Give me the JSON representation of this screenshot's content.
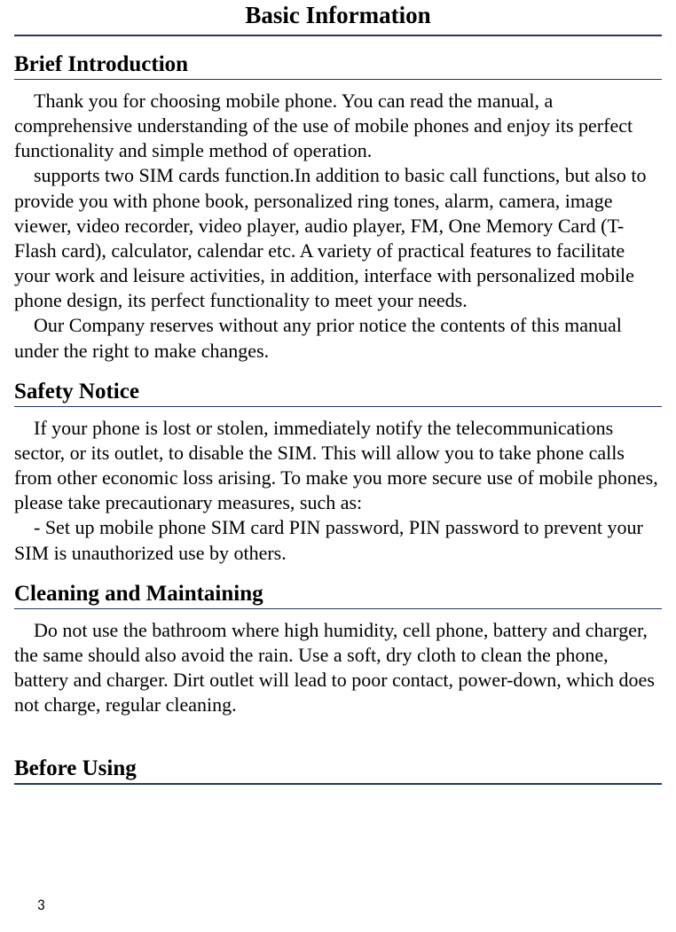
{
  "colors": {
    "rule": "#1f3864",
    "text": "#000000",
    "background": "#ffffff"
  },
  "typography": {
    "title_fontsize": 27,
    "heading_fontsize": 25,
    "body_fontsize": 22,
    "pagenum_fontsize": 17,
    "font_family": "Times New Roman"
  },
  "page_number": "3",
  "title": "Basic Information",
  "sections": [
    {
      "heading": "Brief Introduction",
      "paragraphs": [
        "Thank you for choosing mobile phone. You can read the manual, a comprehensive understanding of the use of mobile phones and enjoy its perfect functionality and simple method of operation.",
        "supports two SIM cards function.In addition to basic call functions, but also to provide you with phone book, personalized ring tones, alarm, camera, image viewer, video recorder, video player, audio player, FM, One Memory Card (T-Flash card), calculator, calendar etc. A variety of practical features to facilitate your work and leisure activities, in addition, interface with personalized mobile phone design, its perfect functionality to meet your needs.",
        "Our Company reserves without any prior notice the contents of this manual under the right to make changes."
      ]
    },
    {
      "heading": "Safety Notice",
      "paragraphs": [
        "If your phone is lost or stolen, immediately notify the telecommunications sector, or its outlet, to disable the SIM. This will allow you to take phone calls from other economic loss arising. To make you more secure use of mobile phones, please take precautionary measures, such as:",
        "- Set up mobile phone SIM card PIN password, PIN password to prevent your SIM is unauthorized use by others."
      ]
    },
    {
      "heading": "Cleaning and Maintaining",
      "paragraphs": [
        "Do not use the bathroom where high humidity, cell phone, battery and charger, the same should also avoid the rain. Use a soft, dry cloth to clean the phone, battery and charger. Dirt outlet will lead to poor contact, power-down, which does not charge, regular cleaning."
      ]
    }
  ],
  "bottom_heading": "Before Using"
}
